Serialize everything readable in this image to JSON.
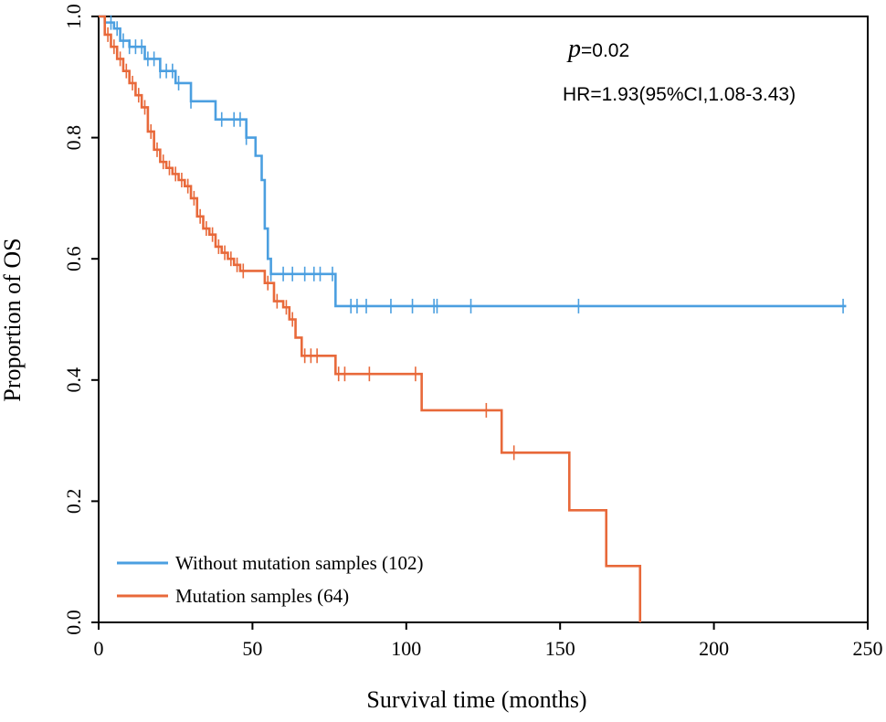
{
  "chart_data": {
    "type": "line",
    "subtype": "kaplan-meier",
    "title": "",
    "xlabel": "Survival time (months)",
    "ylabel": "Proportion of OS",
    "xlim": [
      0,
      250
    ],
    "ylim": [
      0,
      1.0
    ],
    "xticks": [
      0,
      50,
      100,
      150,
      200,
      250
    ],
    "xtick_labels": [
      "0",
      "50",
      "100",
      "150",
      "200",
      "250"
    ],
    "yticks": [
      0,
      0.2,
      0.4,
      0.6,
      0.8,
      1.0
    ],
    "ytick_labels": [
      "0.0",
      "0.2",
      "0.4",
      "0.6",
      "0.8",
      "1.0"
    ],
    "grid": false,
    "legend_position": "bottom-left",
    "annotations": {
      "p_label": "p",
      "p_value": "=0.02",
      "hr": "HR=1.93(95%CI,1.08-3.43)"
    },
    "series": [
      {
        "name": "Without mutation samples (102)",
        "color": "#4b9fe0",
        "x": [
          0,
          2,
          5,
          7,
          10,
          15,
          20,
          25,
          30,
          34,
          38,
          48,
          51,
          53,
          54,
          55,
          56,
          57,
          77,
          78,
          243
        ],
        "y": [
          1.0,
          0.99,
          0.98,
          0.96,
          0.95,
          0.93,
          0.91,
          0.89,
          0.86,
          0.86,
          0.83,
          0.8,
          0.77,
          0.73,
          0.65,
          0.6,
          0.575,
          0.575,
          0.522,
          0.522,
          0.522
        ],
        "censor_x": [
          4,
          6,
          8,
          10,
          12,
          14,
          16,
          18,
          20,
          22,
          24,
          26,
          30,
          40,
          44,
          46,
          48,
          56,
          60,
          63,
          67,
          70,
          72,
          76,
          82,
          84,
          87,
          95,
          102,
          109,
          110,
          121,
          156,
          242
        ]
      },
      {
        "name": "Mutation samples (64)",
        "color": "#e8693a",
        "x": [
          0,
          2,
          4,
          6,
          8,
          10,
          12,
          14,
          16,
          18,
          20,
          22,
          24,
          26,
          28,
          30,
          32,
          34,
          36,
          38,
          40,
          42,
          44,
          46,
          48,
          50,
          54,
          57,
          60,
          62,
          64,
          66,
          70,
          77,
          104,
          105,
          131,
          153,
          165,
          176
        ],
        "y": [
          1.0,
          0.97,
          0.95,
          0.93,
          0.91,
          0.89,
          0.87,
          0.85,
          0.81,
          0.78,
          0.76,
          0.75,
          0.74,
          0.73,
          0.72,
          0.7,
          0.67,
          0.65,
          0.64,
          0.62,
          0.61,
          0.6,
          0.59,
          0.58,
          0.58,
          0.58,
          0.56,
          0.53,
          0.52,
          0.5,
          0.47,
          0.44,
          0.44,
          0.41,
          0.41,
          0.35,
          0.28,
          0.185,
          0.093,
          0.0
        ],
        "censor_x": [
          3,
          5,
          7,
          9,
          11,
          13,
          15,
          17,
          19,
          21,
          23,
          25,
          27,
          29,
          31,
          33,
          35,
          37,
          39,
          41,
          43,
          45,
          47,
          55,
          58,
          61,
          63,
          67,
          69,
          71,
          78,
          80,
          88,
          103,
          126,
          135
        ]
      }
    ]
  }
}
